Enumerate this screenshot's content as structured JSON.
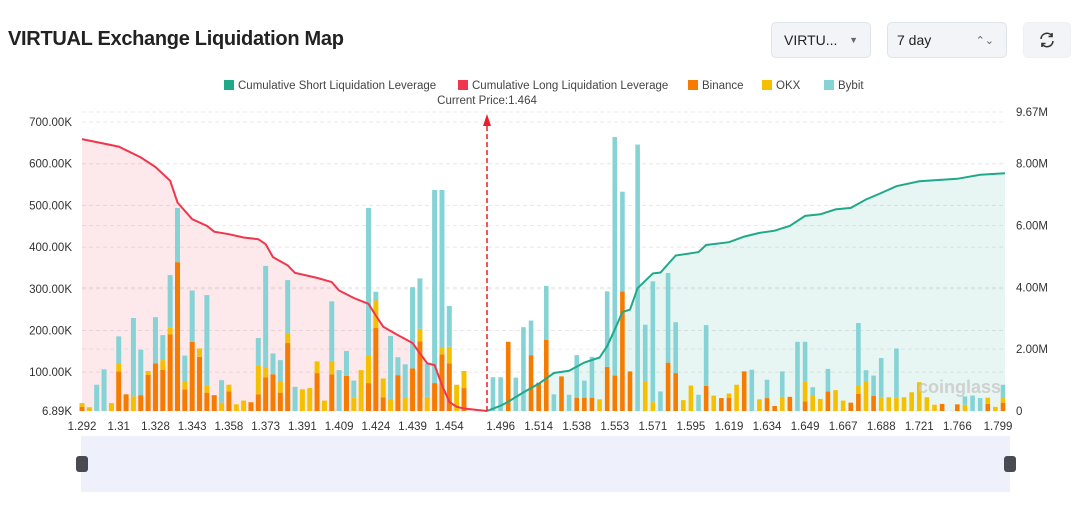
{
  "header": {
    "title": "VIRTUAL Exchange Liquidation Map",
    "symbol_select": "VIRTU...",
    "range_select": "7 day",
    "refresh_icon": "refresh-icon"
  },
  "colors": {
    "short": "#1fa98a",
    "long": "#f0364c",
    "binance": "#f57c00",
    "okx": "#f5c000",
    "bybit": "#86d3d6"
  },
  "chart_data": {
    "type": "bar",
    "legend": [
      "Cumulative Short Liquidation Leverage",
      "Cumulative Long Liquidation Leverage",
      "Binance",
      "OKX",
      "Bybit"
    ],
    "legend_placement": "top",
    "current_price_label": "Current Price:1.464",
    "left_axis": {
      "ticks": [
        "700.00K",
        "600.00K",
        "500.00K",
        "400.00K",
        "300.00K",
        "200.00K",
        "100.00K",
        "6.89K"
      ],
      "range": [
        6890,
        700000
      ]
    },
    "right_axis": {
      "ticks": [
        "9.67M",
        "8.00M",
        "6.00M",
        "4.00M",
        "2.00M",
        "0"
      ],
      "range": [
        0,
        9670000
      ]
    },
    "x_ticks_below": [
      {
        "bar": 1,
        "label": "1.292"
      },
      {
        "bar": 6,
        "label": "1.31"
      },
      {
        "bar": 11,
        "label": "1.328"
      },
      {
        "bar": 16,
        "label": "1.343"
      },
      {
        "bar": 21,
        "label": "1.358"
      },
      {
        "bar": 26,
        "label": "1.373"
      },
      {
        "bar": 31,
        "label": "1.391"
      },
      {
        "bar": 36,
        "label": "1.409"
      },
      {
        "bar": 41,
        "label": "1.424"
      },
      {
        "bar": 46,
        "label": "1.439"
      },
      {
        "bar": 51,
        "label": "1.454"
      }
    ],
    "x_ticks_above": [
      {
        "bar": 2,
        "label": "1.496"
      },
      {
        "bar": 7,
        "label": "1.514"
      },
      {
        "bar": 12,
        "label": "1.538"
      },
      {
        "bar": 17,
        "label": "1.553"
      },
      {
        "bar": 22,
        "label": "1.571"
      },
      {
        "bar": 27,
        "label": "1.595"
      },
      {
        "bar": 32,
        "label": "1.619"
      },
      {
        "bar": 37,
        "label": "1.634"
      },
      {
        "bar": 42,
        "label": "1.649"
      },
      {
        "bar": 47,
        "label": "1.667"
      },
      {
        "bar": 52,
        "label": "1.688"
      },
      {
        "bar": 57,
        "label": "1.721"
      },
      {
        "bar": 62,
        "label": "1.766"
      },
      {
        "bar": 68,
        "label": "1.799"
      }
    ],
    "bars_unit": "K, [Binance, OKX, Bybit]",
    "bars_below": [
      [
        10,
        9,
        0
      ],
      [
        0,
        9,
        0
      ],
      [
        0,
        0,
        63
      ],
      [
        0,
        0,
        100
      ],
      [
        0,
        19,
        0
      ],
      [
        95,
        19,
        65
      ],
      [
        40,
        0,
        0
      ],
      [
        0,
        35,
        188
      ],
      [
        38,
        0,
        109
      ],
      [
        87,
        9,
        0
      ],
      [
        114,
        0,
        111
      ],
      [
        99,
        23,
        60
      ],
      [
        184,
        16,
        126
      ],
      [
        357,
        0,
        130
      ],
      [
        52,
        20,
        61
      ],
      [
        166,
        0,
        123
      ],
      [
        130,
        20,
        0
      ],
      [
        44,
        18,
        216
      ],
      [
        38,
        0,
        0
      ],
      [
        0,
        20,
        54
      ],
      [
        47,
        16,
        0
      ],
      [
        0,
        16,
        0
      ],
      [
        0,
        25,
        0
      ],
      [
        21,
        0,
        0
      ],
      [
        40,
        68,
        67
      ],
      [
        81,
        22,
        245
      ],
      [
        88,
        0,
        50
      ],
      [
        44,
        28,
        50
      ],
      [
        163,
        24,
        127
      ],
      [
        0,
        0,
        58
      ],
      [
        0,
        52,
        0
      ],
      [
        0,
        55,
        0
      ],
      [
        91,
        28,
        0
      ],
      [
        0,
        25,
        0
      ],
      [
        88,
        32,
        143
      ],
      [
        0,
        0,
        98
      ],
      [
        84,
        0,
        60
      ],
      [
        0,
        32,
        41
      ],
      [
        0,
        98,
        0
      ],
      [
        67,
        67,
        353
      ],
      [
        199,
        66,
        21
      ],
      [
        33,
        45,
        0
      ],
      [
        0,
        29,
        151
      ],
      [
        86,
        0,
        43
      ],
      [
        0,
        31,
        81
      ],
      [
        102,
        0,
        195
      ],
      [
        167,
        30,
        121
      ],
      [
        0,
        34,
        80
      ],
      [
        67,
        0,
        463
      ],
      [
        136,
        15,
        379
      ],
      [
        114,
        40,
        98
      ],
      [
        0,
        63,
        0
      ],
      [
        55,
        41,
        0
      ]
    ],
    "bars_above": [
      [
        0,
        0,
        81
      ],
      [
        0,
        0,
        81
      ],
      [
        166,
        0,
        0
      ],
      [
        0,
        0,
        80
      ],
      [
        0,
        0,
        201
      ],
      [
        134,
        0,
        83
      ],
      [
        68,
        0,
        0
      ],
      [
        171,
        0,
        129
      ],
      [
        0,
        0,
        40
      ],
      [
        83,
        0,
        0
      ],
      [
        0,
        0,
        39
      ],
      [
        32,
        0,
        102
      ],
      [
        32,
        0,
        41
      ],
      [
        32,
        0,
        98
      ],
      [
        0,
        28,
        0
      ],
      [
        106,
        0,
        181
      ],
      [
        85,
        0,
        572
      ],
      [
        287,
        0,
        239
      ],
      [
        95,
        0,
        0
      ],
      [
        0,
        0,
        639
      ],
      [
        0,
        72,
        135
      ],
      [
        0,
        21,
        290
      ],
      [
        0,
        0,
        47
      ],
      [
        116,
        0,
        215
      ],
      [
        91,
        0,
        122
      ],
      [
        0,
        26,
        0
      ],
      [
        0,
        61,
        0
      ],
      [
        0,
        0,
        39
      ],
      [
        60,
        0,
        146
      ],
      [
        0,
        37,
        0
      ],
      [
        31,
        0,
        0
      ],
      [
        32,
        10,
        0
      ],
      [
        0,
        63,
        0
      ],
      [
        95,
        0,
        0
      ],
      [
        0,
        0,
        99
      ],
      [
        0,
        28,
        0
      ],
      [
        31,
        0,
        44
      ],
      [
        12,
        0,
        0
      ],
      [
        0,
        34,
        61
      ],
      [
        34,
        0,
        0
      ],
      [
        0,
        0,
        166
      ],
      [
        23,
        48,
        95
      ],
      [
        0,
        36,
        21
      ],
      [
        0,
        29,
        0
      ],
      [
        47,
        0,
        54
      ],
      [
        0,
        50,
        0
      ],
      [
        0,
        25,
        0
      ],
      [
        20,
        0,
        0
      ],
      [
        41,
        19,
        151
      ],
      [
        0,
        72,
        26
      ],
      [
        36,
        0,
        49
      ],
      [
        0,
        33,
        94
      ],
      [
        0,
        33,
        0
      ],
      [
        0,
        33,
        117
      ],
      [
        0,
        33,
        0
      ],
      [
        0,
        45,
        0
      ],
      [
        0,
        69,
        0
      ],
      [
        0,
        33,
        0
      ],
      [
        0,
        15,
        0
      ],
      [
        17,
        0,
        0
      ],
      [
        0,
        0,
        0
      ],
      [
        16,
        0,
        0
      ],
      [
        0,
        15,
        20
      ],
      [
        0,
        0,
        37
      ],
      [
        0,
        0,
        31
      ],
      [
        17,
        15,
        0
      ],
      [
        0,
        10,
        0
      ],
      [
        20,
        11,
        32
      ]
    ],
    "long_cumulative_K": [
      [
        1,
        659
      ],
      [
        6,
        641
      ],
      [
        9,
        615
      ],
      [
        11,
        592
      ],
      [
        13,
        559
      ],
      [
        14,
        507
      ],
      [
        16,
        467
      ],
      [
        18,
        451
      ],
      [
        19,
        437
      ],
      [
        21,
        431
      ],
      [
        23,
        423
      ],
      [
        25,
        419
      ],
      [
        26,
        407
      ],
      [
        27,
        376
      ],
      [
        29,
        356
      ],
      [
        30,
        338
      ],
      [
        33,
        326
      ],
      [
        35,
        316
      ],
      [
        36,
        296
      ],
      [
        38,
        278
      ],
      [
        40,
        264
      ],
      [
        41,
        236
      ],
      [
        42,
        209
      ],
      [
        44,
        189
      ],
      [
        46,
        170
      ],
      [
        47,
        145
      ],
      [
        48,
        121
      ],
      [
        49,
        117
      ],
      [
        50,
        69
      ],
      [
        51,
        29
      ],
      [
        52,
        17
      ],
      [
        53,
        13
      ],
      [
        "current",
        7
      ]
    ],
    "short_cumulative_M": [
      [
        "current",
        0
      ],
      [
        2,
        0.17
      ],
      [
        3,
        0.3
      ],
      [
        5,
        0.6
      ],
      [
        7,
        0.88
      ],
      [
        9,
        1.23
      ],
      [
        11,
        1.3
      ],
      [
        13,
        1.57
      ],
      [
        15,
        1.73
      ],
      [
        16,
        2.1
      ],
      [
        17,
        2.64
      ],
      [
        18,
        3.2
      ],
      [
        19,
        3.28
      ],
      [
        20,
        3.97
      ],
      [
        22,
        4.45
      ],
      [
        23,
        4.48
      ],
      [
        25,
        5.03
      ],
      [
        28,
        5.14
      ],
      [
        29,
        5.37
      ],
      [
        32,
        5.46
      ],
      [
        34,
        5.64
      ],
      [
        36,
        5.76
      ],
      [
        38,
        5.83
      ],
      [
        40,
        5.99
      ],
      [
        42,
        6.31
      ],
      [
        44,
        6.36
      ],
      [
        46,
        6.52
      ],
      [
        48,
        6.57
      ],
      [
        50,
        6.84
      ],
      [
        52,
        7.05
      ],
      [
        54,
        7.27
      ],
      [
        57,
        7.43
      ],
      [
        62,
        7.51
      ],
      [
        65,
        7.64
      ],
      [
        68,
        7.69
      ]
    ],
    "grid": true,
    "watermark": "coinglass"
  }
}
